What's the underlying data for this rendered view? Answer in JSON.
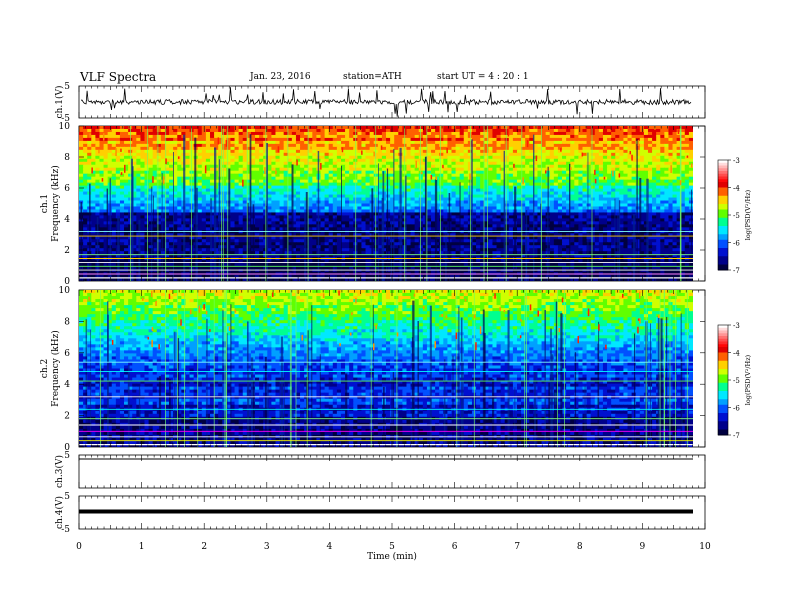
{
  "header": {
    "title": "VLF  Spectra",
    "date": "Jan. 23, 2016",
    "station": "station=ATH",
    "start": "start  UT  =   4  : 20 : 1"
  },
  "colors": {
    "colormap": [
      "#000000",
      "#000080",
      "#0000ff",
      "#0080ff",
      "#00ffff",
      "#00ff80",
      "#80ff00",
      "#ffff00",
      "#ff8000",
      "#ff0000",
      "#ffffff"
    ]
  },
  "chart_data": [
    {
      "type": "line",
      "ylabel": "ch.1(V)",
      "ylim": [
        -5,
        5
      ],
      "yticks": [
        "5",
        "-5"
      ],
      "xlim": [
        0,
        10
      ],
      "series_summary": "noisy waveform near 0 V with spikes"
    },
    {
      "type": "heatmap",
      "ylabel": "ch.1\nFrequency (kHz)",
      "ylabel_lines": [
        "ch.1",
        "Frequency (kHz)"
      ],
      "ylim": [
        0,
        10
      ],
      "yticks": [
        "0",
        "2",
        "4",
        "6",
        "8",
        "10"
      ],
      "xlim": [
        0,
        9.8
      ],
      "colorbar": {
        "label": "log(PSD(V²/Hz)",
        "ticks": [
          "-3",
          "-4",
          "-5",
          "-6",
          "-7"
        ],
        "range": [
          -7,
          -3
        ]
      }
    },
    {
      "type": "heatmap",
      "ylabel": "ch.2\nFrequency (kHz)",
      "ylabel_lines": [
        "ch.2",
        "Frequency (kHz)"
      ],
      "ylim": [
        0,
        10
      ],
      "yticks": [
        "0",
        "2",
        "4",
        "6",
        "8",
        "10"
      ],
      "xlim": [
        0,
        9.8
      ],
      "colorbar": {
        "label": "log(PSD(V²/Hz)",
        "ticks": [
          "-3",
          "-4",
          "-5",
          "-6",
          "-7"
        ],
        "range": [
          -7,
          -3
        ]
      }
    },
    {
      "type": "line",
      "ylabel": "ch.3(V)",
      "ylim": [
        -5,
        5
      ],
      "yticks": [
        "5"
      ],
      "series_summary": "flat at 5 V"
    },
    {
      "type": "line",
      "ylabel": "ch.4(V)",
      "ylim": [
        -5,
        5
      ],
      "yticks": [
        "5",
        "-5"
      ],
      "series_summary": "thick flat line near 0 V"
    }
  ],
  "xaxis": {
    "label": "Time  (min)",
    "ticks": [
      "0",
      "1",
      "2",
      "3",
      "4",
      "5",
      "6",
      "7",
      "8",
      "9",
      "10"
    ],
    "xlim": [
      0,
      10
    ]
  }
}
